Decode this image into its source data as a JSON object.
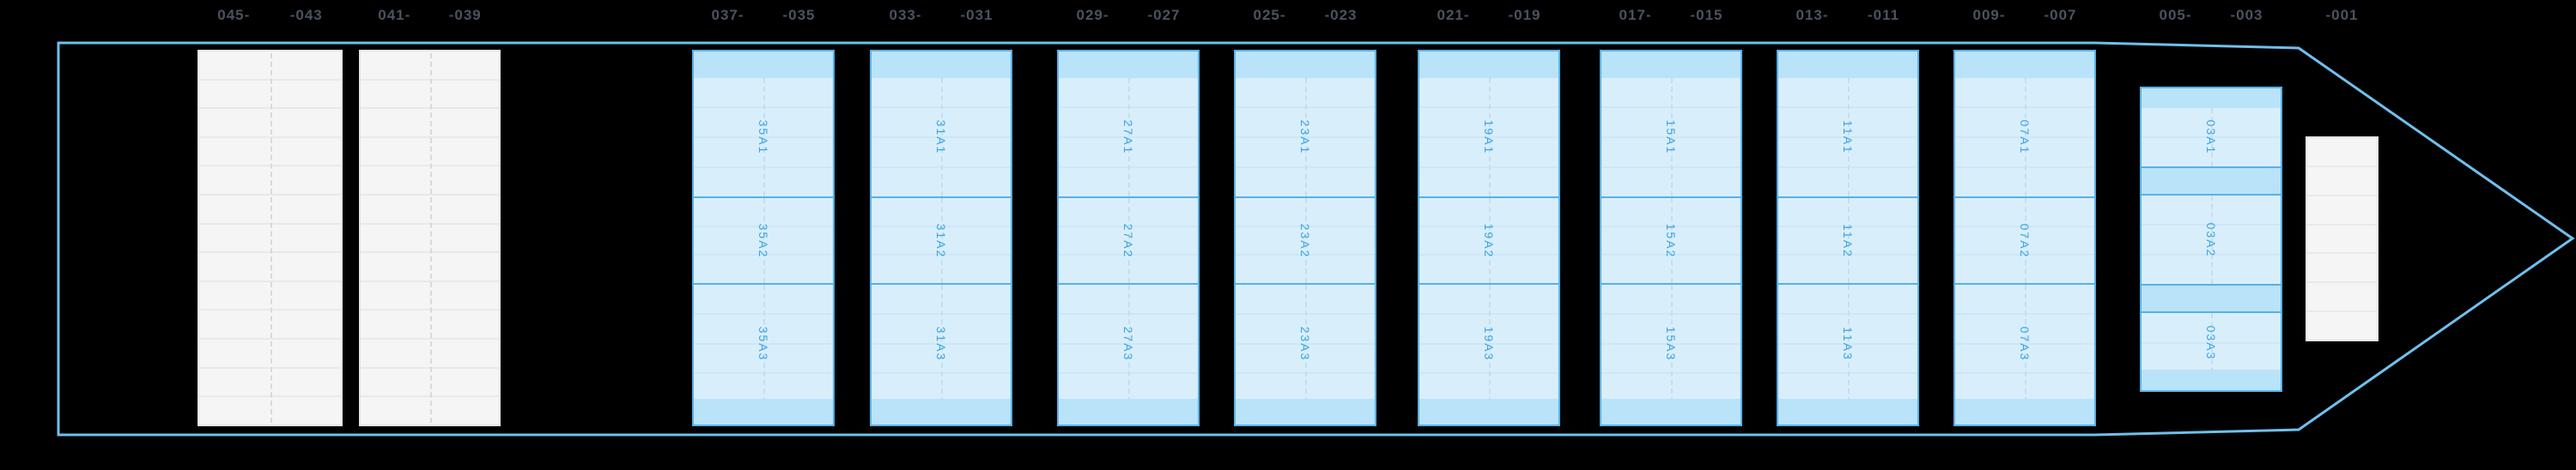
{
  "app": {
    "view_name": "vessel-bay-plan",
    "orientation": "bow-right"
  },
  "plan": {
    "placeholder_sections": [
      {
        "labels": [
          "045-",
          "-043"
        ],
        "rows": 13
      },
      {
        "labels": [
          "041-",
          "-039"
        ],
        "rows": 13
      }
    ],
    "bays": [
      {
        "id": "35",
        "labels": [
          "037-",
          "-035"
        ],
        "stacks": [
          "35A1",
          "35A2",
          "35A3"
        ]
      },
      {
        "id": "31",
        "labels": [
          "033-",
          "-031"
        ],
        "stacks": [
          "31A1",
          "31A2",
          "31A3"
        ]
      },
      {
        "id": "27",
        "labels": [
          "029-",
          "-027"
        ],
        "stacks": [
          "27A1",
          "27A2",
          "27A3"
        ]
      },
      {
        "id": "23",
        "labels": [
          "025-",
          "-023"
        ],
        "stacks": [
          "23A1",
          "23A2",
          "23A3"
        ]
      },
      {
        "id": "19",
        "labels": [
          "021-",
          "-019"
        ],
        "stacks": [
          "19A1",
          "19A2",
          "19A3"
        ]
      },
      {
        "id": "15",
        "labels": [
          "017-",
          "-015"
        ],
        "stacks": [
          "15A1",
          "15A2",
          "15A3"
        ]
      },
      {
        "id": "11",
        "labels": [
          "013-",
          "-011"
        ],
        "stacks": [
          "11A1",
          "11A2",
          "11A3"
        ]
      },
      {
        "id": "07",
        "labels": [
          "009-",
          "-007"
        ],
        "stacks": [
          "07A1",
          "07A2",
          "07A3"
        ]
      },
      {
        "id": "03",
        "labels": [
          "005-",
          "-003"
        ],
        "stacks": [
          "03A1",
          "03A2",
          "03A3"
        ]
      }
    ],
    "bow_section": {
      "labels": [
        "-001"
      ],
      "rows": 7
    }
  },
  "colors": {
    "background": "#000000",
    "hull_outline": "#6fc0ee",
    "bay_border": "#58b0e7",
    "bay_fill": "#d9eefb",
    "bay_cap_fill": "#b9e3f9",
    "bay_row_divider": "#cde7f7",
    "stack_label_text": "#3aa4e1",
    "position_label_text": "#4b5260",
    "placeholder_fill": "#f5f5f6",
    "placeholder_border": "#e3e3e6"
  }
}
